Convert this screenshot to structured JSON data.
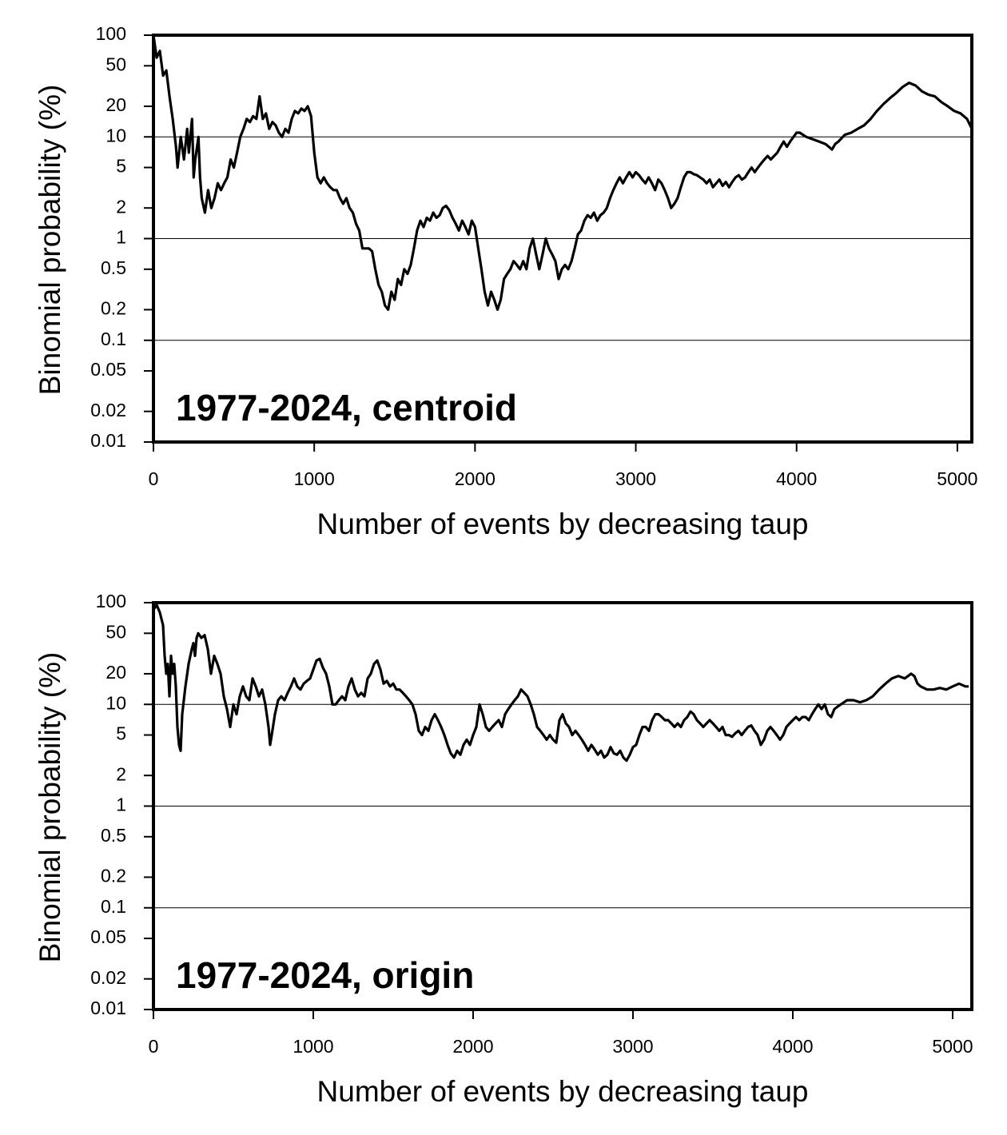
{
  "chart_data": [
    {
      "type": "line",
      "annotation": "1977-2024, centroid",
      "xlabel": "Number of events by decreasing taup",
      "ylabel": "Binomial probability (%)",
      "log_y": true,
      "grid": true,
      "color": "#000000",
      "xlim": [
        0,
        5090
      ],
      "xticks": [
        0,
        1000,
        2000,
        3000,
        4000,
        5000
      ],
      "ylim": [
        0.01,
        100
      ],
      "yticks": [
        100,
        50,
        20,
        10,
        5,
        2,
        1,
        0.5,
        0.2,
        0.1,
        0.05,
        0.02,
        0.01
      ],
      "x": [
        0,
        20,
        40,
        60,
        80,
        100,
        120,
        140,
        150,
        170,
        190,
        210,
        220,
        240,
        250,
        260,
        280,
        290,
        300,
        320,
        340,
        360,
        380,
        400,
        420,
        440,
        460,
        480,
        500,
        520,
        540,
        560,
        580,
        600,
        620,
        640,
        660,
        680,
        700,
        720,
        740,
        760,
        780,
        800,
        820,
        840,
        860,
        880,
        900,
        920,
        940,
        960,
        980,
        1000,
        1020,
        1040,
        1060,
        1080,
        1100,
        1120,
        1140,
        1160,
        1180,
        1200,
        1220,
        1240,
        1260,
        1280,
        1300,
        1320,
        1340,
        1360,
        1380,
        1400,
        1420,
        1440,
        1460,
        1480,
        1500,
        1520,
        1540,
        1560,
        1580,
        1600,
        1620,
        1640,
        1660,
        1680,
        1700,
        1720,
        1740,
        1760,
        1780,
        1800,
        1820,
        1840,
        1860,
        1880,
        1900,
        1920,
        1940,
        1960,
        1980,
        2000,
        2020,
        2040,
        2060,
        2080,
        2100,
        2120,
        2140,
        2160,
        2180,
        2200,
        2220,
        2240,
        2260,
        2280,
        2300,
        2320,
        2340,
        2360,
        2380,
        2400,
        2420,
        2440,
        2460,
        2480,
        2500,
        2520,
        2540,
        2560,
        2580,
        2600,
        2620,
        2640,
        2660,
        2680,
        2700,
        2720,
        2740,
        2760,
        2780,
        2800,
        2820,
        2840,
        2860,
        2880,
        2900,
        2920,
        2940,
        2960,
        2980,
        3000,
        3020,
        3040,
        3060,
        3080,
        3100,
        3120,
        3140,
        3160,
        3180,
        3200,
        3220,
        3240,
        3260,
        3280,
        3300,
        3320,
        3340,
        3360,
        3380,
        3400,
        3420,
        3440,
        3460,
        3480,
        3500,
        3520,
        3540,
        3560,
        3580,
        3600,
        3620,
        3640,
        3660,
        3680,
        3700,
        3720,
        3740,
        3760,
        3780,
        3800,
        3820,
        3840,
        3860,
        3880,
        3900,
        3920,
        3940,
        3960,
        4000,
        4020,
        4060,
        4100,
        4140,
        4180,
        4200,
        4220,
        4240,
        4260,
        4300,
        4340,
        4380,
        4420,
        4460,
        4500,
        4540,
        4580,
        4620,
        4660,
        4700,
        4740,
        4780,
        4820,
        4860,
        4900,
        4940,
        4980,
        5020,
        5060,
        5090
      ],
      "values": [
        100,
        60,
        70,
        40,
        45,
        25,
        15,
        8,
        5,
        10,
        6,
        12,
        7,
        15,
        4,
        6,
        10,
        4,
        2.5,
        1.8,
        3,
        2,
        2.5,
        3.5,
        3,
        3.5,
        4,
        6,
        5,
        7,
        10,
        12,
        15,
        14,
        16,
        15,
        25,
        15,
        17,
        12,
        14,
        13,
        11,
        10,
        12,
        11,
        15,
        18,
        17,
        19,
        18,
        20,
        16,
        7,
        4,
        3.5,
        4,
        3.5,
        3.2,
        3,
        3,
        2.5,
        2.2,
        2.5,
        2,
        1.8,
        1.4,
        1.2,
        0.8,
        0.8,
        0.8,
        0.75,
        0.5,
        0.35,
        0.3,
        0.22,
        0.2,
        0.3,
        0.25,
        0.4,
        0.35,
        0.5,
        0.45,
        0.55,
        0.8,
        1.2,
        1.5,
        1.3,
        1.6,
        1.5,
        1.8,
        1.6,
        1.7,
        2,
        2.1,
        1.9,
        1.6,
        1.4,
        1.2,
        1.5,
        1.3,
        1.1,
        1.5,
        1.3,
        0.8,
        0.5,
        0.3,
        0.22,
        0.3,
        0.25,
        0.2,
        0.25,
        0.4,
        0.45,
        0.5,
        0.6,
        0.55,
        0.5,
        0.6,
        0.5,
        0.8,
        1,
        0.7,
        0.5,
        0.7,
        1,
        0.8,
        0.7,
        0.6,
        0.4,
        0.5,
        0.55,
        0.5,
        0.6,
        0.8,
        1.1,
        1.2,
        1.5,
        1.7,
        1.6,
        1.8,
        1.5,
        1.7,
        1.8,
        2,
        2.5,
        3,
        3.5,
        4,
        3.5,
        4,
        4.5,
        4,
        4.5,
        4.2,
        3.8,
        3.5,
        4,
        3.5,
        3,
        3.8,
        3.5,
        3,
        2.5,
        2,
        2.2,
        2.5,
        3.2,
        4,
        4.5,
        4.5,
        4.3,
        4.2,
        4,
        3.8,
        3.5,
        3.8,
        3.2,
        3.5,
        3.8,
        3.3,
        3.6,
        3.2,
        3.6,
        4,
        4.2,
        3.8,
        4,
        4.5,
        5,
        4.5,
        5,
        5.5,
        6,
        6.5,
        6,
        6.5,
        7,
        8,
        9,
        8,
        9,
        11,
        11,
        10,
        9.5,
        9,
        8.5,
        8,
        7.5,
        8.5,
        9,
        10.5,
        11,
        12,
        13,
        15,
        18,
        21,
        24,
        27,
        31,
        34,
        32,
        28,
        26,
        25,
        22,
        20,
        18,
        17,
        15,
        12
      ]
    },
    {
      "type": "line",
      "annotation": "1977-2024, origin",
      "xlabel": "Number of events by decreasing taup",
      "ylabel": "Binomial probability (%)",
      "log_y": true,
      "grid": true,
      "color": "#000000",
      "xlim": [
        0,
        5120
      ],
      "xticks": [
        0,
        1000,
        2000,
        3000,
        4000,
        5000
      ],
      "ylim": [
        0.01,
        100
      ],
      "yticks": [
        100,
        50,
        20,
        10,
        5,
        2,
        1,
        0.5,
        0.2,
        0.1,
        0.05,
        0.02,
        0.01
      ],
      "x": [
        0,
        20,
        40,
        60,
        70,
        80,
        90,
        100,
        110,
        120,
        130,
        140,
        150,
        160,
        170,
        180,
        200,
        220,
        240,
        250,
        260,
        270,
        280,
        300,
        320,
        340,
        360,
        380,
        400,
        420,
        440,
        460,
        480,
        500,
        520,
        540,
        560,
        580,
        600,
        620,
        640,
        660,
        680,
        700,
        720,
        730,
        740,
        760,
        780,
        800,
        820,
        840,
        860,
        880,
        900,
        920,
        940,
        960,
        980,
        1000,
        1020,
        1040,
        1060,
        1080,
        1100,
        1120,
        1140,
        1160,
        1180,
        1200,
        1220,
        1240,
        1260,
        1280,
        1300,
        1320,
        1340,
        1360,
        1380,
        1400,
        1420,
        1440,
        1460,
        1480,
        1500,
        1520,
        1540,
        1560,
        1580,
        1600,
        1620,
        1640,
        1660,
        1680,
        1700,
        1720,
        1740,
        1760,
        1780,
        1800,
        1820,
        1840,
        1860,
        1880,
        1900,
        1920,
        1940,
        1960,
        1980,
        2000,
        2020,
        2040,
        2060,
        2080,
        2100,
        2120,
        2140,
        2160,
        2180,
        2200,
        2220,
        2240,
        2260,
        2280,
        2300,
        2320,
        2340,
        2360,
        2380,
        2400,
        2420,
        2440,
        2460,
        2480,
        2500,
        2520,
        2540,
        2560,
        2580,
        2600,
        2620,
        2640,
        2660,
        2680,
        2700,
        2720,
        2740,
        2760,
        2780,
        2800,
        2820,
        2840,
        2860,
        2880,
        2900,
        2920,
        2940,
        2960,
        2980,
        3000,
        3020,
        3040,
        3060,
        3080,
        3100,
        3120,
        3140,
        3160,
        3180,
        3200,
        3220,
        3240,
        3260,
        3280,
        3300,
        3320,
        3340,
        3360,
        3380,
        3400,
        3420,
        3440,
        3460,
        3480,
        3500,
        3520,
        3540,
        3560,
        3580,
        3600,
        3620,
        3640,
        3660,
        3680,
        3700,
        3720,
        3740,
        3760,
        3780,
        3800,
        3820,
        3840,
        3860,
        3880,
        3900,
        3920,
        3940,
        3960,
        3980,
        4000,
        4020,
        4040,
        4060,
        4080,
        4100,
        4120,
        4140,
        4160,
        4180,
        4200,
        4220,
        4240,
        4260,
        4280,
        4300,
        4340,
        4380,
        4420,
        4460,
        4500,
        4540,
        4580,
        4620,
        4660,
        4700,
        4740,
        4760,
        4780,
        4800,
        4840,
        4880,
        4920,
        4960,
        5000,
        5040,
        5080,
        5100
      ],
      "values": [
        85,
        95,
        80,
        60,
        30,
        20,
        25,
        12,
        30,
        20,
        25,
        15,
        6,
        4,
        3.5,
        8,
        15,
        25,
        35,
        40,
        30,
        45,
        50,
        45,
        48,
        35,
        20,
        30,
        25,
        20,
        12,
        9,
        6,
        10,
        8,
        12,
        15,
        12,
        11,
        18,
        15,
        12,
        14,
        10,
        6,
        4,
        5,
        8,
        11,
        12,
        11,
        13,
        15,
        18,
        15,
        14,
        16,
        17,
        18,
        22,
        27,
        28,
        23,
        20,
        15,
        10,
        10,
        11,
        12,
        11,
        15,
        18,
        14,
        12,
        13,
        12,
        18,
        20,
        25,
        27,
        22,
        16,
        17,
        15,
        16,
        14,
        14,
        13,
        12,
        11,
        10,
        8,
        5.5,
        5,
        6,
        5.5,
        7,
        8,
        7,
        6,
        5,
        4,
        3.3,
        3,
        3.5,
        3.2,
        4,
        4.5,
        4,
        5,
        6,
        10,
        8,
        6,
        5.5,
        6,
        6.5,
        7,
        6,
        8,
        9,
        10,
        11,
        12,
        14,
        13,
        12,
        10,
        8,
        6,
        5.5,
        5,
        4.5,
        5,
        4.5,
        4.2,
        7,
        8,
        6.5,
        6,
        5,
        5.5,
        5,
        4.5,
        4,
        3.5,
        4,
        3.6,
        3.2,
        3.5,
        3,
        3.2,
        3.8,
        3.3,
        3.2,
        3.5,
        3,
        2.8,
        3.2,
        3.8,
        4,
        5,
        6,
        6,
        5.5,
        7,
        8,
        8,
        7.5,
        7,
        7,
        6.5,
        6,
        6.5,
        6,
        7,
        7.5,
        8.5,
        8,
        7,
        6.5,
        6,
        6.5,
        7,
        6.5,
        6,
        5.5,
        6,
        5,
        5,
        4.8,
        5.2,
        5.5,
        5,
        5.5,
        6,
        6.2,
        5.5,
        5,
        4,
        4.5,
        5.5,
        6,
        5.5,
        5,
        4.5,
        5,
        6,
        6.5,
        7,
        7.5,
        7,
        7.5,
        7.5,
        7,
        8,
        9,
        10,
        9,
        10,
        8,
        7.5,
        9,
        9.5,
        10,
        11,
        11,
        10.5,
        11,
        12,
        14,
        16,
        18,
        19,
        18,
        20,
        19,
        16,
        15,
        14,
        14,
        14.5,
        14,
        15,
        16,
        15,
        15
      ]
    }
  ]
}
